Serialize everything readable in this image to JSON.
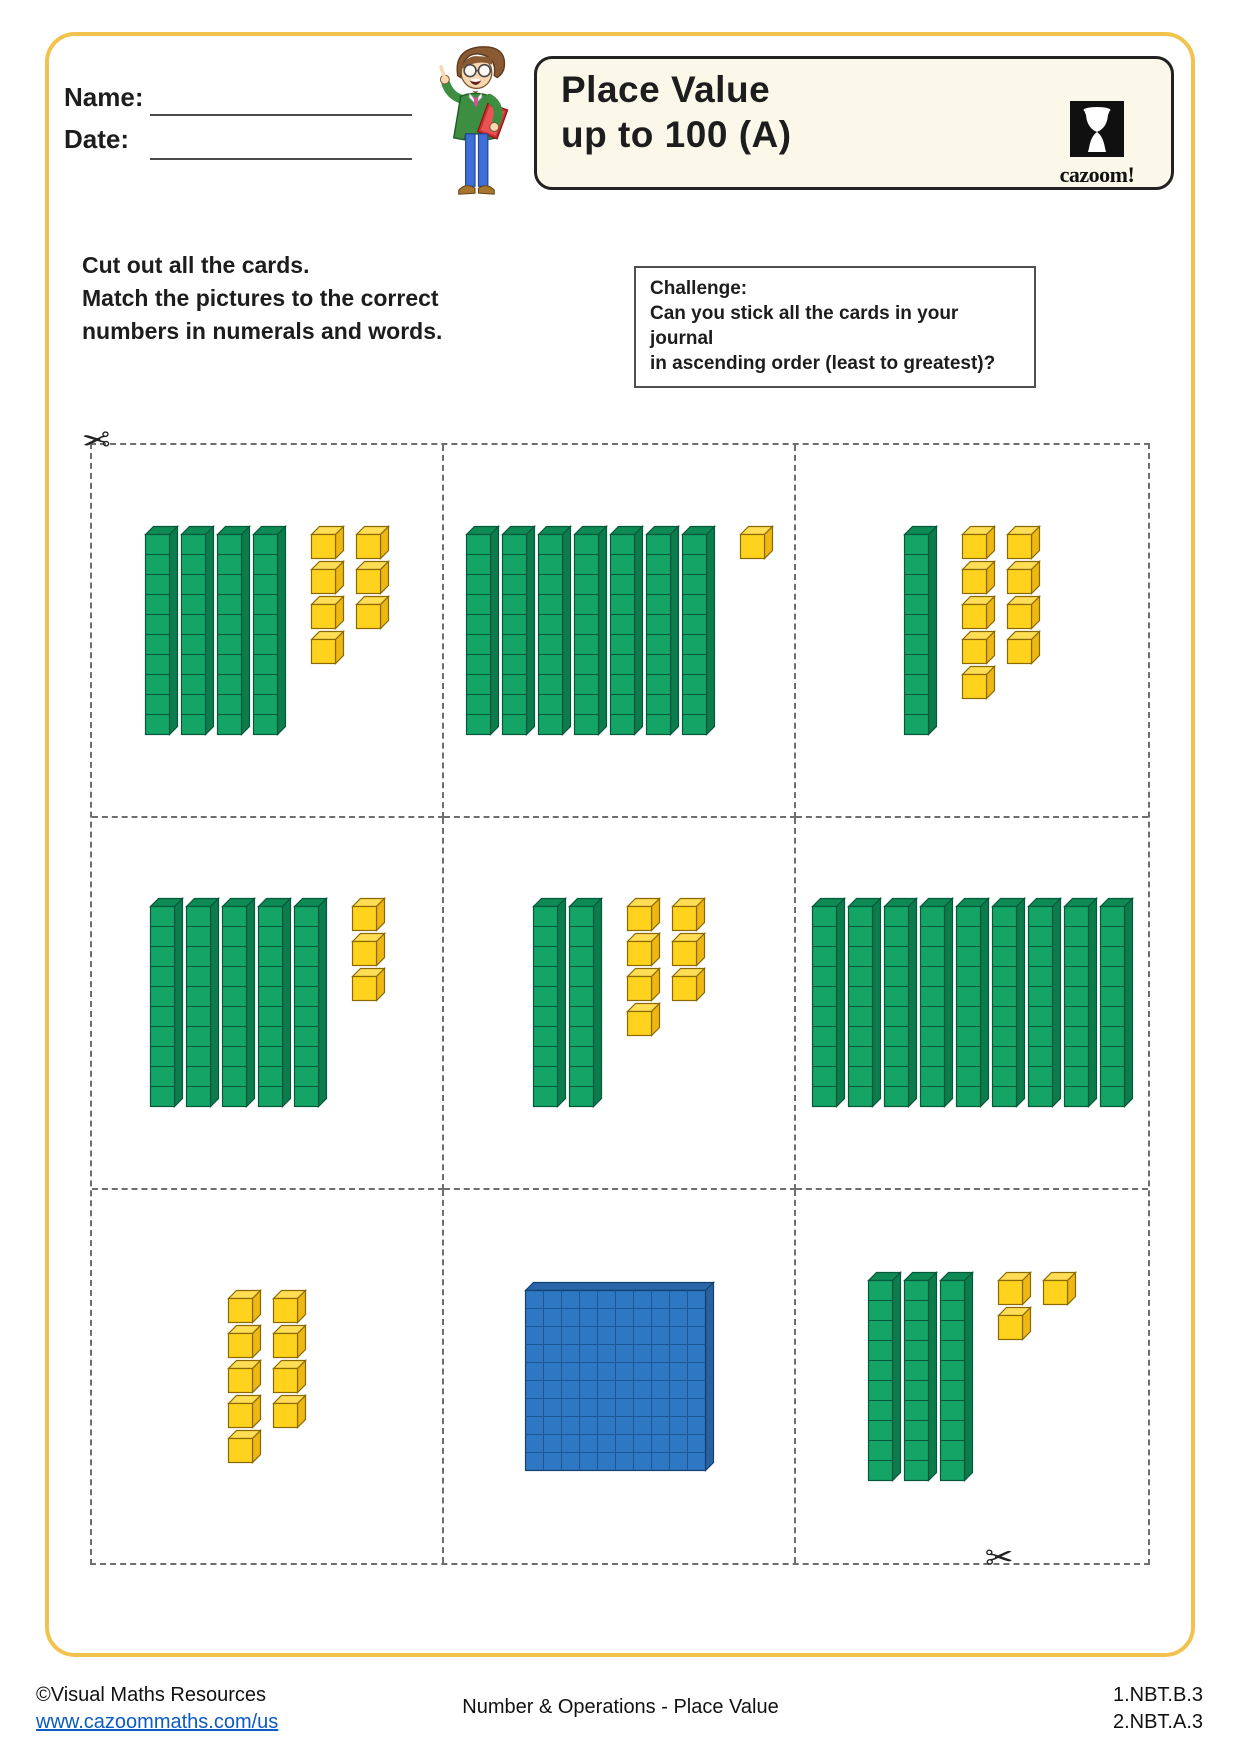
{
  "header": {
    "name_label": "Name:",
    "date_label": "Date:",
    "title_line1": "Place Value",
    "title_line2": "up to 100 (A)",
    "logo_text": "cazoom!"
  },
  "instructions": {
    "line1": "Cut out all the cards.",
    "line2": "Match the pictures to the correct",
    "line3": "numbers in numerals and words."
  },
  "challenge": {
    "label": "Challenge:",
    "line1": "Can you stick all the cards in your journal",
    "line2": "in ascending order (least to greatest)?"
  },
  "cards": [
    {
      "value": 47,
      "hundreds": 0,
      "tens": 4,
      "ones_columns": [
        4,
        3
      ]
    },
    {
      "value": 71,
      "hundreds": 0,
      "tens": 7,
      "ones_columns": [
        1
      ]
    },
    {
      "value": 19,
      "hundreds": 0,
      "tens": 1,
      "ones_columns": [
        5,
        4
      ]
    },
    {
      "value": 53,
      "hundreds": 0,
      "tens": 5,
      "ones_columns": [
        3
      ]
    },
    {
      "value": 27,
      "hundreds": 0,
      "tens": 2,
      "ones_columns": [
        4,
        3
      ]
    },
    {
      "value": 90,
      "hundreds": 0,
      "tens": 9,
      "ones_columns": []
    },
    {
      "value": 9,
      "hundreds": 0,
      "tens": 0,
      "ones_columns": [
        5,
        4
      ]
    },
    {
      "value": 100,
      "hundreds": 1,
      "tens": 0,
      "ones_columns": []
    },
    {
      "value": 33,
      "hundreds": 0,
      "tens": 3,
      "ones_columns": [
        2,
        1
      ]
    }
  ],
  "blocks": {
    "ten": {
      "face": "#14A466",
      "top": "#0E8A54",
      "side": "#0C7C4C",
      "outline": "#06523400"
    },
    "ten_line": "#07573A",
    "one": {
      "face": "#FFD21E",
      "top": "#FFDE55",
      "side": "#EDB714",
      "outline": "#8A6A00"
    },
    "hundred": {
      "face": "#2E77C2",
      "top": "#2A67AA",
      "side": "#27619E",
      "outline": "#153F70",
      "grid": "#1D5695"
    }
  },
  "accent": {
    "frame": "#F2C24E",
    "link": "#0B5BC4",
    "title_box_bg": "#FBF8EA"
  },
  "icons": {
    "scissors": "✂"
  },
  "footer": {
    "copyright": "©Visual Maths Resources",
    "website": "www.cazoommaths.com/us",
    "center": "Number & Operations - Place Value",
    "standard1": "1.NBT.B.3",
    "standard2": "2.NBT.A.3"
  }
}
